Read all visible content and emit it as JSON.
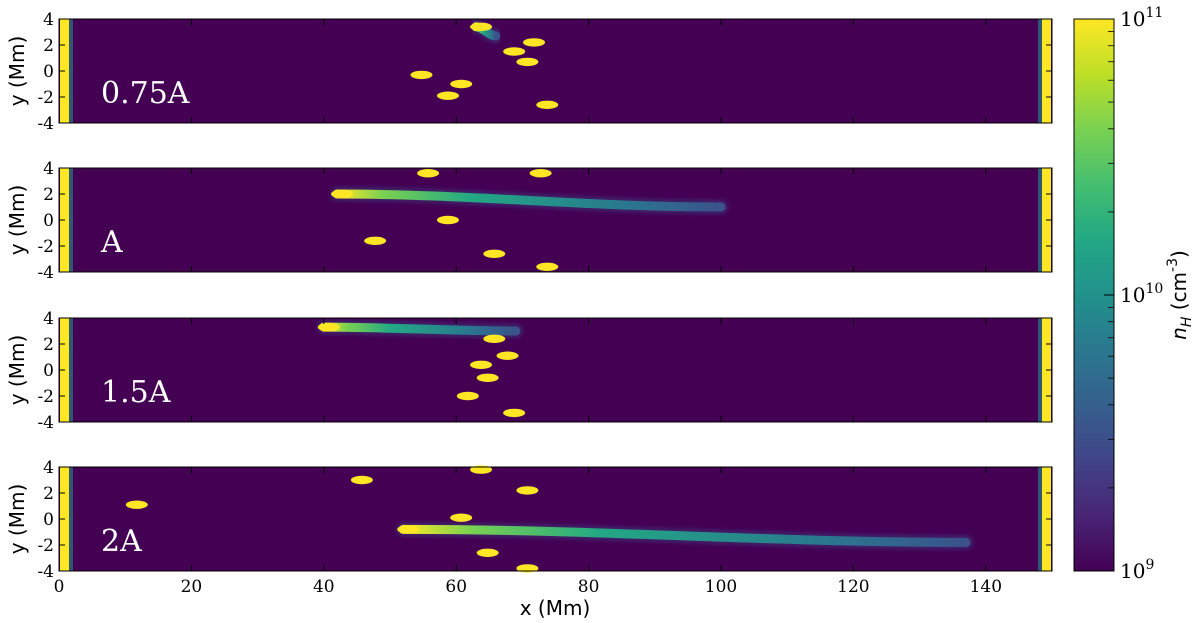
{
  "chart_data": {
    "type": "heatmap",
    "colormap": "viridis",
    "colorscale": "log",
    "x_label": "x  (Mm)",
    "y_label": "y  (Mm)",
    "xlim": [
      0,
      150
    ],
    "ylim": [
      -4,
      4
    ],
    "x_ticks": [
      "0",
      "20",
      "40",
      "60",
      "80",
      "100",
      "120",
      "140"
    ],
    "x_tick_values": [
      0,
      20,
      40,
      60,
      80,
      100,
      120,
      140
    ],
    "y_ticks": [
      "4",
      "2",
      "0",
      "-2",
      "-4"
    ],
    "y_tick_values": [
      4,
      2,
      0,
      -2,
      -4
    ],
    "colorbar": {
      "label_main": "n",
      "label_sub": "H",
      "label_unit": " (cm",
      "label_exp": "-3",
      "label_close": ")",
      "range": [
        1000000000.0,
        100000000000.0
      ],
      "ticks": [
        {
          "base": "10",
          "exp": "11",
          "value": 100000000000.0
        },
        {
          "base": "10",
          "exp": "10",
          "value": 10000000000.0
        },
        {
          "base": "10",
          "exp": "9",
          "value": 1000000000.0
        }
      ]
    },
    "panels": [
      {
        "label": "0.75A",
        "strands": [
          {
            "x0": 63,
            "x1": 66,
            "y0": 3.4,
            "y1": 2.7
          },
          {
            "x0": 71,
            "x1": 76,
            "y0": 2.2,
            "y1": 2.2
          },
          {
            "x0": 68,
            "x1": 74,
            "y0": 1.5,
            "y1": 1.5
          },
          {
            "x0": 70,
            "x1": 92,
            "y0": 0.7,
            "y1": 0.7
          },
          {
            "x0": 54,
            "x1": 77,
            "y0": -0.3,
            "y1": -0.3
          },
          {
            "x0": 60,
            "x1": 83,
            "y0": -1.0,
            "y1": -1.0
          },
          {
            "x0": 58,
            "x1": 79,
            "y0": -1.9,
            "y1": -1.9
          },
          {
            "x0": 73,
            "x1": 88,
            "y0": -2.6,
            "y1": -2.6
          }
        ]
      },
      {
        "label": "A",
        "strands": [
          {
            "x0": 55,
            "x1": 56,
            "y0": 3.6,
            "y1": 3.6
          },
          {
            "x0": 72,
            "x1": 86,
            "y0": 3.6,
            "y1": 3.6
          },
          {
            "x0": 42,
            "x1": 100,
            "y0": 2.0,
            "y1": 1.0
          },
          {
            "x0": 58,
            "x1": 82,
            "y0": 0.0,
            "y1": 0.0
          },
          {
            "x0": 47,
            "x1": 74,
            "y0": -1.6,
            "y1": -1.6
          },
          {
            "x0": 65,
            "x1": 84,
            "y0": -2.6,
            "y1": -2.6
          },
          {
            "x0": 73,
            "x1": 86,
            "y0": -3.6,
            "y1": -3.6
          }
        ]
      },
      {
        "label": "1.5A",
        "strands": [
          {
            "x0": 40,
            "x1": 69,
            "y0": 3.3,
            "y1": 3.0
          },
          {
            "x0": 65,
            "x1": 74,
            "y0": 2.4,
            "y1": 2.4
          },
          {
            "x0": 67,
            "x1": 97,
            "y0": 1.1,
            "y1": 1.1
          },
          {
            "x0": 63,
            "x1": 80,
            "y0": 0.4,
            "y1": 0.4
          },
          {
            "x0": 64,
            "x1": 79,
            "y0": -0.6,
            "y1": -0.6
          },
          {
            "x0": 61,
            "x1": 70,
            "y0": -2.0,
            "y1": -2.0
          },
          {
            "x0": 68,
            "x1": 77,
            "y0": -3.3,
            "y1": -3.3
          }
        ]
      },
      {
        "label": "2A",
        "strands": [
          {
            "x0": 63,
            "x1": 89,
            "y0": 3.8,
            "y1": 3.8
          },
          {
            "x0": 45,
            "x1": 80,
            "y0": 3.0,
            "y1": 3.0
          },
          {
            "x0": 70,
            "x1": 80,
            "y0": 2.2,
            "y1": 2.2
          },
          {
            "x0": 11,
            "x1": 75,
            "y0": 1.1,
            "y1": 1.1
          },
          {
            "x0": 60,
            "x1": 82,
            "y0": 0.1,
            "y1": 0.1
          },
          {
            "x0": 52,
            "x1": 137,
            "y0": -0.8,
            "y1": -1.8
          },
          {
            "x0": 64,
            "x1": 100,
            "y0": -2.6,
            "y1": -2.6
          },
          {
            "x0": 70,
            "x1": 88,
            "y0": -3.8,
            "y1": -3.8
          }
        ]
      }
    ]
  }
}
